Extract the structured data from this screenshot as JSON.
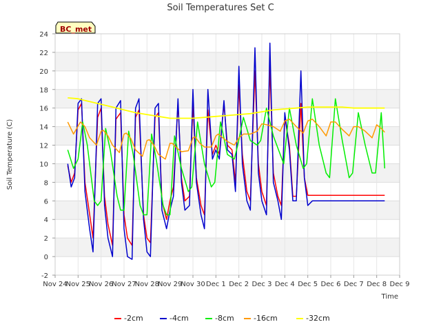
{
  "chart_data": {
    "type": "line",
    "title": "Soil Temperatures Set C",
    "xlabel": "Time",
    "ylabel": "Soil Temperature (C)",
    "station_tag": "BC_met",
    "ylim": [
      -2,
      24
    ],
    "yticks": [
      -2,
      0,
      2,
      4,
      6,
      8,
      10,
      12,
      14,
      16,
      18,
      20,
      22,
      24
    ],
    "xlim": [
      0,
      15
    ],
    "xticks": [
      {
        "day": 0,
        "label": "Nov 24"
      },
      {
        "day": 1,
        "label": "Nov 25"
      },
      {
        "day": 2,
        "label": "Nov 26"
      },
      {
        "day": 3,
        "label": "Nov 27"
      },
      {
        "day": 4,
        "label": "Nov 28"
      },
      {
        "day": 5,
        "label": "Nov 29"
      },
      {
        "day": 6,
        "label": "Nov 30"
      },
      {
        "day": 7,
        "label": "Dec 1"
      },
      {
        "day": 8,
        "label": "Dec 2"
      },
      {
        "day": 9,
        "label": "Dec 3"
      },
      {
        "day": 10,
        "label": "Dec 4"
      },
      {
        "day": 11,
        "label": "Dec 5"
      },
      {
        "day": 12,
        "label": "Dec 6"
      },
      {
        "day": 13,
        "label": "Dec 7"
      },
      {
        "day": 14,
        "label": "Dec 8"
      },
      {
        "day": 15,
        "label": "Dec 9"
      }
    ],
    "grid": true,
    "legend_position": "bottom",
    "series": [
      {
        "name": "-2cm",
        "color": "#ff0000",
        "width": 1.5,
        "x": [
          0.55,
          0.7,
          0.85,
          1.0,
          1.15,
          1.3,
          1.5,
          1.65,
          1.85,
          2.0,
          2.15,
          2.3,
          2.5,
          2.65,
          2.85,
          3.0,
          3.15,
          3.35,
          3.5,
          3.65,
          3.85,
          4.0,
          4.15,
          4.35,
          4.5,
          4.65,
          4.85,
          5.0,
          5.15,
          5.35,
          5.5,
          5.65,
          5.85,
          6.0,
          6.15,
          6.35,
          6.5,
          6.65,
          6.85,
          7.0,
          7.15,
          7.35,
          7.5,
          7.7,
          7.85,
          8.0,
          8.15,
          8.35,
          8.5,
          8.7,
          8.85,
          9.0,
          9.2,
          9.35,
          9.5,
          9.7,
          9.85,
          10.0,
          10.2,
          10.35,
          10.5,
          10.7,
          10.85,
          11.0,
          11.2,
          11.35,
          11.5,
          11.7,
          11.85,
          12.0,
          12.2,
          12.35,
          12.5,
          12.7,
          12.85,
          13.0,
          13.2,
          13.35,
          13.5,
          13.7,
          13.85,
          14.0,
          14.2,
          14.35
        ],
        "y": [
          9.8,
          8.0,
          9.0,
          15.8,
          16.5,
          8.0,
          4.6,
          2.0,
          15.0,
          16.0,
          6.5,
          3.5,
          1.2,
          14.8,
          15.5,
          4.5,
          2.0,
          1.2,
          15.0,
          15.8,
          4.5,
          2.0,
          1.5,
          15.0,
          15.5,
          6.0,
          4.0,
          6.0,
          7.5,
          16.5,
          8.5,
          6.0,
          6.5,
          16.5,
          8.5,
          5.5,
          4.5,
          15.8,
          11.0,
          12.0,
          11.0,
          16.5,
          12.0,
          11.5,
          8.0,
          18.5,
          11.0,
          7.0,
          6.0,
          20.0,
          10.0,
          7.0,
          5.5,
          20.5,
          9.0,
          6.5,
          5.5,
          15.0,
          12.0,
          6.5,
          6.5,
          16.5,
          8.5,
          6.6,
          6.6,
          6.6,
          6.6,
          6.6,
          6.6,
          6.6,
          6.6,
          6.6,
          6.6,
          6.6,
          6.6,
          6.6,
          6.6,
          6.6,
          6.6,
          6.6,
          6.6,
          6.6,
          6.6,
          6.6
        ]
      },
      {
        "name": "-4cm",
        "color": "#0000cc",
        "width": 1.5,
        "x": [
          0.55,
          0.7,
          0.85,
          1.0,
          1.15,
          1.3,
          1.5,
          1.65,
          1.85,
          2.0,
          2.15,
          2.3,
          2.5,
          2.65,
          2.85,
          3.0,
          3.15,
          3.35,
          3.5,
          3.65,
          3.85,
          4.0,
          4.15,
          4.35,
          4.5,
          4.65,
          4.85,
          5.0,
          5.15,
          5.35,
          5.5,
          5.65,
          5.85,
          6.0,
          6.15,
          6.35,
          6.5,
          6.65,
          6.85,
          7.0,
          7.15,
          7.35,
          7.5,
          7.7,
          7.85,
          8.0,
          8.15,
          8.35,
          8.5,
          8.7,
          8.85,
          9.0,
          9.2,
          9.35,
          9.5,
          9.7,
          9.85,
          10.0,
          10.2,
          10.35,
          10.5,
          10.7,
          10.85,
          11.0,
          11.2,
          11.35,
          11.5,
          11.7,
          11.85,
          12.0,
          12.2,
          12.35,
          12.5,
          12.7,
          12.85,
          13.0,
          13.2,
          13.35,
          13.5,
          13.7,
          13.85,
          14.0,
          14.2,
          14.35
        ],
        "y": [
          10.0,
          7.5,
          8.5,
          16.5,
          17.0,
          7.0,
          3.0,
          0.5,
          16.5,
          17.0,
          5.5,
          2.0,
          0.0,
          16.0,
          16.8,
          3.0,
          0.0,
          -0.3,
          16.0,
          17.0,
          4.0,
          0.5,
          0.0,
          16.0,
          16.5,
          5.0,
          3.0,
          5.0,
          6.5,
          17.0,
          8.0,
          5.0,
          5.5,
          18.0,
          8.0,
          4.5,
          3.0,
          18.0,
          10.5,
          11.5,
          10.5,
          16.8,
          11.5,
          11.0,
          7.0,
          20.5,
          10.0,
          6.0,
          5.0,
          22.5,
          9.0,
          6.0,
          4.5,
          23.0,
          8.0,
          6.0,
          4.0,
          15.5,
          11.5,
          6.0,
          6.0,
          20.0,
          8.5,
          5.5,
          6.0,
          6.0,
          6.0,
          6.0,
          6.0,
          6.0,
          6.0,
          6.0,
          6.0,
          6.0,
          6.0,
          6.0,
          6.0,
          6.0,
          6.0,
          6.0,
          6.0,
          6.0,
          6.0,
          6.0
        ]
      },
      {
        "name": "-8cm",
        "color": "#00ee00",
        "width": 1.5,
        "x": [
          0.55,
          0.8,
          1.0,
          1.2,
          1.4,
          1.7,
          1.85,
          2.0,
          2.2,
          2.4,
          2.7,
          2.85,
          3.0,
          3.2,
          3.4,
          3.7,
          3.85,
          4.0,
          4.2,
          4.4,
          4.7,
          4.85,
          5.0,
          5.2,
          5.5,
          5.8,
          5.95,
          6.2,
          6.5,
          6.8,
          6.95,
          7.2,
          7.5,
          7.8,
          7.95,
          8.2,
          8.5,
          8.8,
          8.95,
          9.2,
          9.5,
          9.8,
          9.95,
          10.2,
          10.5,
          10.8,
          10.95,
          11.2,
          11.5,
          11.8,
          11.95,
          12.2,
          12.5,
          12.8,
          12.95,
          13.2,
          13.5,
          13.8,
          13.95,
          14.2,
          14.35
        ],
        "y": [
          11.5,
          9.5,
          10.5,
          14.5,
          12.0,
          6.0,
          5.5,
          6.0,
          13.8,
          11.5,
          6.5,
          5.0,
          5.0,
          13.5,
          11.0,
          5.5,
          4.5,
          4.5,
          13.2,
          10.5,
          5.5,
          4.5,
          4.5,
          13.0,
          9.5,
          7.0,
          7.5,
          14.5,
          10.0,
          7.5,
          8.0,
          14.5,
          11.0,
          10.5,
          12.0,
          15.0,
          12.5,
          12.0,
          12.5,
          16.0,
          13.0,
          11.0,
          10.0,
          16.0,
          12.0,
          9.5,
          10.0,
          17.0,
          12.0,
          9.0,
          8.5,
          17.0,
          12.5,
          8.5,
          9.0,
          15.5,
          12.0,
          9.0,
          9.0,
          15.5,
          9.5
        ]
      },
      {
        "name": "-16cm",
        "color": "#ff9900",
        "width": 1.5,
        "x": [
          0.55,
          0.8,
          1.1,
          1.3,
          1.5,
          1.8,
          2.0,
          2.1,
          2.3,
          2.5,
          2.8,
          3.0,
          3.1,
          3.3,
          3.5,
          3.8,
          4.0,
          4.1,
          4.3,
          4.5,
          4.8,
          5.0,
          5.1,
          5.3,
          5.5,
          5.8,
          6.0,
          6.1,
          6.3,
          6.5,
          6.8,
          7.0,
          7.1,
          7.3,
          7.5,
          7.8,
          8.0,
          8.2,
          8.5,
          8.8,
          9.0,
          9.2,
          9.5,
          9.8,
          10.0,
          10.2,
          10.5,
          10.8,
          11.0,
          11.2,
          11.5,
          11.8,
          12.0,
          12.2,
          12.5,
          12.8,
          13.0,
          13.2,
          13.5,
          13.8,
          14.0,
          14.2,
          14.35
        ],
        "y": [
          14.5,
          13.2,
          14.5,
          14.0,
          12.8,
          12.0,
          13.5,
          13.6,
          13.0,
          12.0,
          11.2,
          13.2,
          13.3,
          12.7,
          11.5,
          10.8,
          12.5,
          12.6,
          12.0,
          11.0,
          10.5,
          12.2,
          12.2,
          11.7,
          11.3,
          11.4,
          12.8,
          12.9,
          12.2,
          11.8,
          11.8,
          13.0,
          13.2,
          12.8,
          12.4,
          12.0,
          12.8,
          13.2,
          13.2,
          13.5,
          14.3,
          14.2,
          14.0,
          13.5,
          14.6,
          14.8,
          14.0,
          13.3,
          14.6,
          14.8,
          14.0,
          13.0,
          14.5,
          14.5,
          13.7,
          13.0,
          14.0,
          14.0,
          13.5,
          12.8,
          14.2,
          13.8,
          13.4
        ]
      },
      {
        "name": "-32cm",
        "color": "#ffff00",
        "width": 1.8,
        "x": [
          0.55,
          1.0,
          1.5,
          2.0,
          2.5,
          3.0,
          3.5,
          4.0,
          4.5,
          5.0,
          5.5,
          6.0,
          6.5,
          7.0,
          7.5,
          8.0,
          8.5,
          9.0,
          9.5,
          10.0,
          10.5,
          11.0,
          11.5,
          12.0,
          12.5,
          13.0,
          13.5,
          14.0,
          14.35
        ],
        "y": [
          17.1,
          17.0,
          16.7,
          16.4,
          16.1,
          15.8,
          15.5,
          15.3,
          15.1,
          14.9,
          14.9,
          14.9,
          15.0,
          15.1,
          15.2,
          15.3,
          15.4,
          15.6,
          15.8,
          15.9,
          16.0,
          16.1,
          16.1,
          16.1,
          16.1,
          16.0,
          16.0,
          16.0,
          16.0
        ]
      }
    ]
  }
}
